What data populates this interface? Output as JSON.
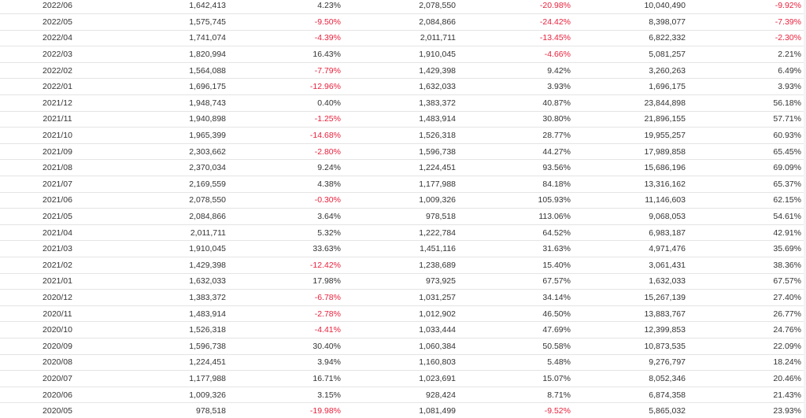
{
  "table": {
    "rows": [
      [
        "2022/06",
        "1,642,413",
        "4.23%",
        "2,078,550",
        "-20.98%",
        "10,040,490",
        "-9.92%"
      ],
      [
        "2022/05",
        "1,575,745",
        "-9.50%",
        "2,084,866",
        "-24.42%",
        "8,398,077",
        "-7.39%"
      ],
      [
        "2022/04",
        "1,741,074",
        "-4.39%",
        "2,011,711",
        "-13.45%",
        "6,822,332",
        "-2.30%"
      ],
      [
        "2022/03",
        "1,820,994",
        "16.43%",
        "1,910,045",
        "-4.66%",
        "5,081,257",
        "2.21%"
      ],
      [
        "2022/02",
        "1,564,088",
        "-7.79%",
        "1,429,398",
        "9.42%",
        "3,260,263",
        "6.49%"
      ],
      [
        "2022/01",
        "1,696,175",
        "-12.96%",
        "1,632,033",
        "3.93%",
        "1,696,175",
        "3.93%"
      ],
      [
        "2021/12",
        "1,948,743",
        "0.40%",
        "1,383,372",
        "40.87%",
        "23,844,898",
        "56.18%"
      ],
      [
        "2021/11",
        "1,940,898",
        "-1.25%",
        "1,483,914",
        "30.80%",
        "21,896,155",
        "57.71%"
      ],
      [
        "2021/10",
        "1,965,399",
        "-14.68%",
        "1,526,318",
        "28.77%",
        "19,955,257",
        "60.93%"
      ],
      [
        "2021/09",
        "2,303,662",
        "-2.80%",
        "1,596,738",
        "44.27%",
        "17,989,858",
        "65.45%"
      ],
      [
        "2021/08",
        "2,370,034",
        "9.24%",
        "1,224,451",
        "93.56%",
        "15,686,196",
        "69.09%"
      ],
      [
        "2021/07",
        "2,169,559",
        "4.38%",
        "1,177,988",
        "84.18%",
        "13,316,162",
        "65.37%"
      ],
      [
        "2021/06",
        "2,078,550",
        "-0.30%",
        "1,009,326",
        "105.93%",
        "11,146,603",
        "62.15%"
      ],
      [
        "2021/05",
        "2,084,866",
        "3.64%",
        "978,518",
        "113.06%",
        "9,068,053",
        "54.61%"
      ],
      [
        "2021/04",
        "2,011,711",
        "5.32%",
        "1,222,784",
        "64.52%",
        "6,983,187",
        "42.91%"
      ],
      [
        "2021/03",
        "1,910,045",
        "33.63%",
        "1,451,116",
        "31.63%",
        "4,971,476",
        "35.69%"
      ],
      [
        "2021/02",
        "1,429,398",
        "-12.42%",
        "1,238,689",
        "15.40%",
        "3,061,431",
        "38.36%"
      ],
      [
        "2021/01",
        "1,632,033",
        "17.98%",
        "973,925",
        "67.57%",
        "1,632,033",
        "67.57%"
      ],
      [
        "2020/12",
        "1,383,372",
        "-6.78%",
        "1,031,257",
        "34.14%",
        "15,267,139",
        "27.40%"
      ],
      [
        "2020/11",
        "1,483,914",
        "-2.78%",
        "1,012,902",
        "46.50%",
        "13,883,767",
        "26.77%"
      ],
      [
        "2020/10",
        "1,526,318",
        "-4.41%",
        "1,033,444",
        "47.69%",
        "12,399,853",
        "24.76%"
      ],
      [
        "2020/09",
        "1,596,738",
        "30.40%",
        "1,060,384",
        "50.58%",
        "10,873,535",
        "22.09%"
      ],
      [
        "2020/08",
        "1,224,451",
        "3.94%",
        "1,160,803",
        "5.48%",
        "9,276,797",
        "18.24%"
      ],
      [
        "2020/07",
        "1,177,988",
        "16.71%",
        "1,023,691",
        "15.07%",
        "8,052,346",
        "20.46%"
      ],
      [
        "2020/06",
        "1,009,326",
        "3.15%",
        "928,424",
        "8.71%",
        "6,874,358",
        "21.43%"
      ],
      [
        "2020/05",
        "978,518",
        "-19.98%",
        "1,081,499",
        "-9.52%",
        "5,865,032",
        "23.93%"
      ]
    ]
  },
  "colors": {
    "text": "#333333",
    "negative": "#e8213c",
    "grid": "#e4e4e4"
  }
}
